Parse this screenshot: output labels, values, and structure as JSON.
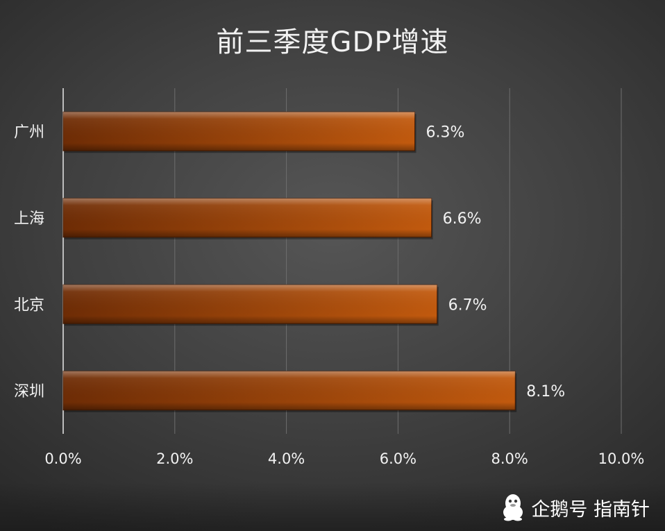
{
  "chart_data": {
    "type": "bar",
    "orientation": "horizontal",
    "title": "前三季度GDP增速",
    "categories": [
      "广州",
      "上海",
      "北京",
      "深圳"
    ],
    "values": [
      6.3,
      6.6,
      6.7,
      8.1
    ],
    "value_labels": [
      "6.3%",
      "6.6%",
      "6.7%",
      "8.1%"
    ],
    "xlim": [
      0,
      10
    ],
    "x_ticks": [
      0,
      2,
      4,
      6,
      8,
      10
    ],
    "x_tick_labels": [
      "0.0%",
      "2.0%",
      "4.0%",
      "6.0%",
      "8.0%",
      "10.0%"
    ],
    "grid": true,
    "legend": "none",
    "colors": {
      "bar_dark": "#6e2c05",
      "bar_light": "#c25a0e",
      "text": "#f2f2f2",
      "grid": "#6e6e6e"
    }
  },
  "watermark": {
    "icon": "qq-penguin-icon",
    "text": "企鹅号 指南针"
  }
}
